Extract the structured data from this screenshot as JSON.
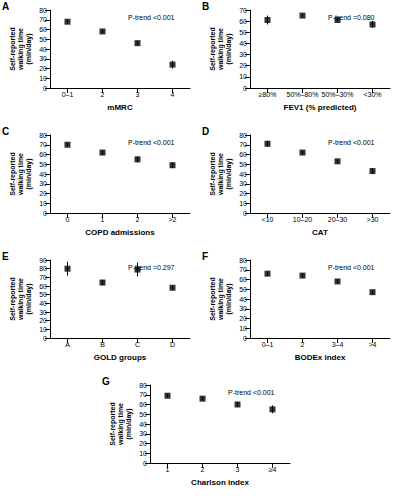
{
  "chart_data": [
    {
      "type": "scatter",
      "title": "A",
      "x_label": "mMRC",
      "y_label": "Self-reported\nwalking time\n(min/day)",
      "categories": [
        "0–1",
        "2",
        "3",
        "4"
      ],
      "values": [
        68,
        58,
        46,
        24
      ],
      "error": [
        1.5,
        1.5,
        2,
        4
      ],
      "ylim": [
        0,
        80
      ],
      "yticks": [
        0,
        10,
        20,
        30,
        40,
        50,
        60,
        70,
        80
      ],
      "annotation": "P-trend <0.001",
      "color": "#000000",
      "marker": "square",
      "grid": false
    },
    {
      "type": "scatter",
      "title": "B",
      "x_label": "FEV1 (% predicted)",
      "y_label": "Self-reported\nwalking time\n(min/day)",
      "categories": [
        "≥80%",
        "50%–80%",
        "50%–30%",
        "<30%"
      ],
      "values": [
        61,
        65,
        61,
        57
      ],
      "error": [
        4,
        1,
        1.5,
        3
      ],
      "ylim": [
        0,
        70
      ],
      "yticks": [
        0,
        10,
        20,
        30,
        40,
        50,
        60,
        70
      ],
      "annotation": "P-trend =0.080",
      "color": "#000000",
      "marker": "square",
      "grid": false
    },
    {
      "type": "scatter",
      "title": "C",
      "x_label": "COPD admissions",
      "y_label": "Self-reported\nwalking time\n(min/day)",
      "categories": [
        "0",
        "1",
        "2",
        ">2"
      ],
      "values": [
        70,
        62,
        55,
        49
      ],
      "error": [
        1.5,
        2,
        3,
        3
      ],
      "ylim": [
        0,
        80
      ],
      "yticks": [
        0,
        10,
        20,
        30,
        40,
        50,
        60,
        70,
        80
      ],
      "annotation": "P-trend <0.001",
      "color": "#000000",
      "marker": "square",
      "grid": false
    },
    {
      "type": "scatter",
      "title": "D",
      "x_label": "CAT",
      "y_label": "Self-reported\nwalking time\n(min/day)",
      "categories": [
        "<10",
        "10–20",
        "20–30",
        ">30"
      ],
      "values": [
        71,
        62,
        53,
        43
      ],
      "error": [
        3,
        1.5,
        1.5,
        3
      ],
      "ylim": [
        0,
        80
      ],
      "yticks": [
        0,
        10,
        20,
        30,
        40,
        50,
        60,
        70,
        80
      ],
      "annotation": "P-trend <0.001",
      "color": "#000000",
      "marker": "square",
      "grid": false
    },
    {
      "type": "scatter",
      "title": "E",
      "x_label": "GOLD groups",
      "y_label": "Self-reported\nwalking time\n(min/day)",
      "categories": [
        "A",
        "B",
        "C",
        "D"
      ],
      "values": [
        80,
        64,
        79,
        58
      ],
      "error": [
        8,
        3,
        8,
        1.5
      ],
      "ylim": [
        0,
        90
      ],
      "yticks": [
        0,
        10,
        20,
        30,
        40,
        50,
        60,
        70,
        80,
        90
      ],
      "annotation": "P-trend =0.297",
      "color": "#000000",
      "marker": "square",
      "grid": false
    },
    {
      "type": "scatter",
      "title": "F",
      "x_label": "BODEx index",
      "y_label": "Self-reported\nwalking time\n(min/day)",
      "categories": [
        "0–1",
        "2",
        "3–4",
        ">4"
      ],
      "values": [
        66,
        64,
        58,
        47
      ],
      "error": [
        2,
        2,
        2,
        2
      ],
      "ylim": [
        0,
        80
      ],
      "yticks": [
        0,
        10,
        20,
        30,
        40,
        50,
        60,
        70,
        80
      ],
      "annotation": "P-trend <0.001",
      "color": "#000000",
      "marker": "square",
      "grid": false
    },
    {
      "type": "scatter",
      "title": "G",
      "x_label": "Charlson index",
      "y_label": "Self-reported\nwalking time\n(min/day)",
      "categories": [
        "1",
        "2",
        "3",
        "≥4"
      ],
      "values": [
        69,
        66,
        60,
        55
      ],
      "error": [
        2,
        1.5,
        2.5,
        4
      ],
      "ylim": [
        0,
        80
      ],
      "yticks": [
        0,
        10,
        20,
        30,
        40,
        50,
        60,
        70,
        80
      ],
      "annotation": "P-trend <0.001",
      "color": "#000000",
      "marker": "square",
      "grid": false
    }
  ]
}
